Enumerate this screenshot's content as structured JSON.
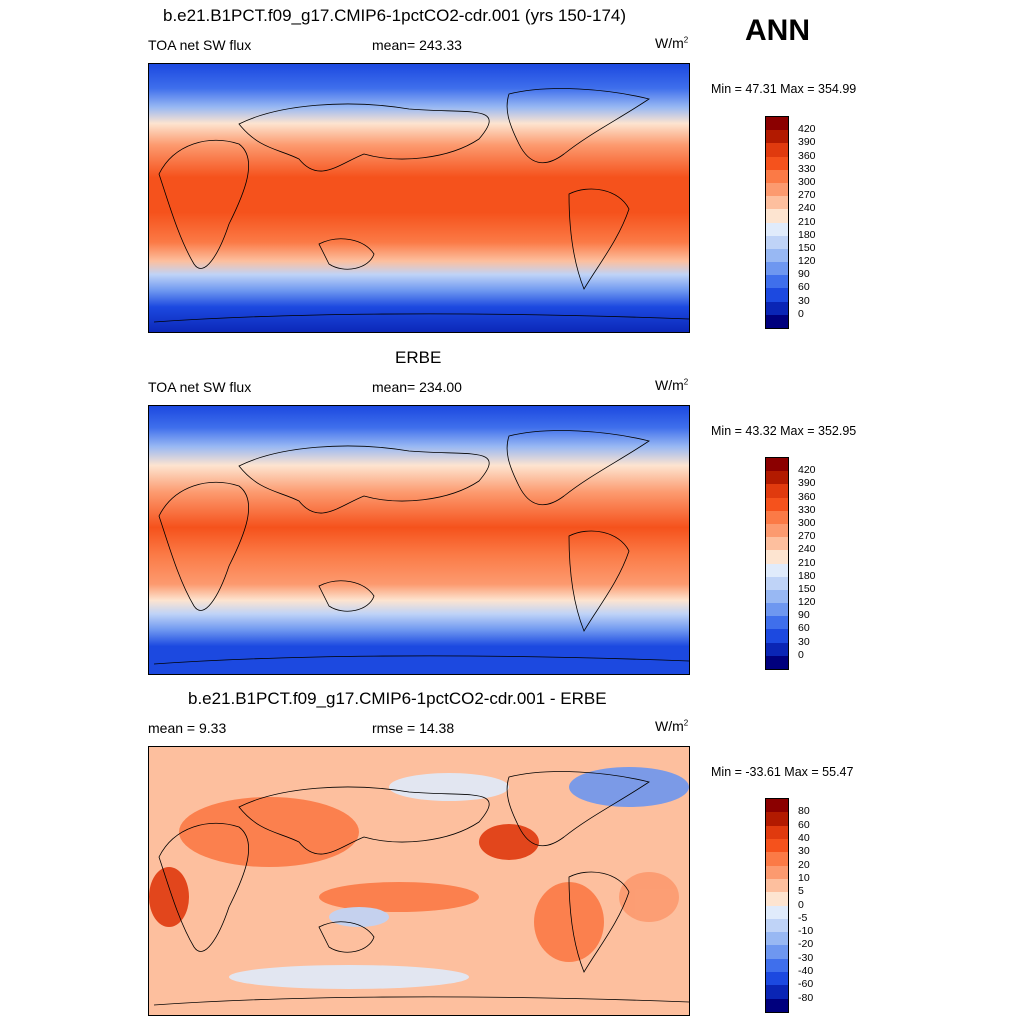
{
  "season": "ANN",
  "panels": [
    {
      "title": "b.e21.B1PCT.f09_g17.CMIP6-1pctCO2-cdr.001 (yrs 150-174)",
      "left": "TOA net SW flux",
      "center": "mean= 243.33",
      "units_base": "W/m",
      "units_exp": "2",
      "minmax": "Min =  47.31 Max = 354.99",
      "colorbar": {
        "labels": [
          "420",
          "390",
          "360",
          "330",
          "300",
          "270",
          "240",
          "210",
          "180",
          "150",
          "120",
          "90",
          "60",
          "30",
          "0"
        ],
        "colors": [
          "#8b0000",
          "#b21a00",
          "#e03a0e",
          "#f5521c",
          "#fb7a46",
          "#fc9a6f",
          "#fdbf9e",
          "#fde4d0",
          "#e0ebfb",
          "#bfd3f7",
          "#98b8f3",
          "#6e97f0",
          "#3f6fec",
          "#1c49e0",
          "#0a25b5",
          "#00007d"
        ]
      }
    },
    {
      "title": "ERBE",
      "left": "TOA net SW flux",
      "center": "mean= 234.00",
      "units_base": "W/m",
      "units_exp": "2",
      "minmax": "Min =  43.32 Max = 352.95",
      "colorbar": {
        "labels": [
          "420",
          "390",
          "360",
          "330",
          "300",
          "270",
          "240",
          "210",
          "180",
          "150",
          "120",
          "90",
          "60",
          "30",
          "0"
        ],
        "colors": [
          "#8b0000",
          "#b21a00",
          "#e03a0e",
          "#f5521c",
          "#fb7a46",
          "#fc9a6f",
          "#fdbf9e",
          "#fde4d0",
          "#e0ebfb",
          "#bfd3f7",
          "#98b8f3",
          "#6e97f0",
          "#3f6fec",
          "#1c49e0",
          "#0a25b5",
          "#00007d"
        ]
      }
    },
    {
      "title": "b.e21.B1PCT.f09_g17.CMIP6-1pctCO2-cdr.001 - ERBE",
      "left": "mean =   9.33",
      "center": "rmse =  14.38",
      "units_base": "W/m",
      "units_exp": "2",
      "minmax": "Min = -33.61 Max =  55.47",
      "colorbar": {
        "labels": [
          "80",
          "60",
          "40",
          "30",
          "20",
          "10",
          "5",
          "0",
          "-5",
          "-10",
          "-20",
          "-30",
          "-40",
          "-60",
          "-80"
        ],
        "colors": [
          "#8b0000",
          "#b21a00",
          "#e03a0e",
          "#f5521c",
          "#fb7a46",
          "#fc9a6f",
          "#fdbf9e",
          "#fde4d0",
          "#e0ebfb",
          "#bfd3f7",
          "#98b8f3",
          "#6e97f0",
          "#3f6fec",
          "#1c49e0",
          "#0a25b5",
          "#00007d"
        ]
      }
    }
  ]
}
